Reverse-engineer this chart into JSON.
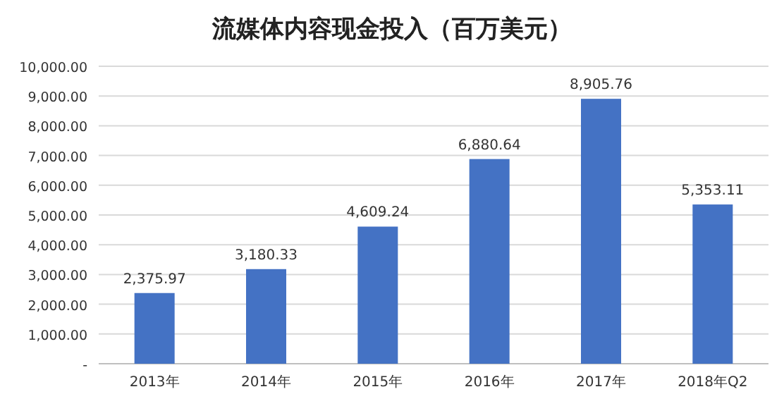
{
  "chart_data": {
    "type": "bar",
    "title": "流媒体内容现金投入（百万美元）",
    "categories": [
      "2013年",
      "2014年",
      "2015年",
      "2016年",
      "2017年",
      "2018年Q2"
    ],
    "values": [
      2375.97,
      3180.33,
      4609.24,
      6880.64,
      8905.76,
      5353.11
    ],
    "value_labels": [
      "2,375.97",
      "3,180.33",
      "4,609.24",
      "6,880.64",
      "8,905.76",
      "5,353.11"
    ],
    "color": "#4472c4",
    "ylim": [
      0,
      10000
    ],
    "yticks": [
      {
        "value": 0,
        "label": "-"
      },
      {
        "value": 1000,
        "label": "1,000.00"
      },
      {
        "value": 2000,
        "label": "2,000.00"
      },
      {
        "value": 3000,
        "label": "3,000.00"
      },
      {
        "value": 4000,
        "label": "4,000.00"
      },
      {
        "value": 5000,
        "label": "5,000.00"
      },
      {
        "value": 6000,
        "label": "6,000.00"
      },
      {
        "value": 7000,
        "label": "7,000.00"
      },
      {
        "value": 8000,
        "label": "8,000.00"
      },
      {
        "value": 9000,
        "label": "9,000.00"
      },
      {
        "value": 10000,
        "label": "10,000.00"
      }
    ],
    "grid": "y"
  }
}
